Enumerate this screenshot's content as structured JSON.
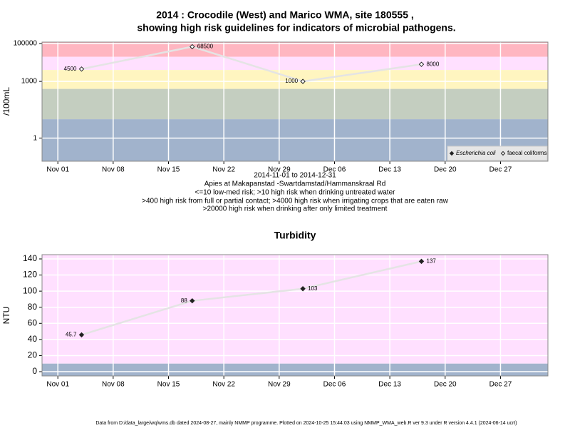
{
  "chart_data": [
    {
      "type": "line",
      "title": [
        "2014 : Crocodile (West) and Marico WMA, site 180555 ,",
        "showing high risk guidelines for indicators of microbial pathogens."
      ],
      "subtitle": [
        "2014-11-01 to 2014-12-31",
        "Apies at Makapanstad -Swartdamstad/Hammanskraal Rd",
        "<=10 low-med risk; >10 high risk when drinking untreated water",
        ">400 high risk from full or partial contact; >4000 high risk when irrigating crops that are eaten raw",
        ">20000 high risk when drinking after only limited treatment"
      ],
      "y_label": "/100mL",
      "log_y": true,
      "grid": true,
      "legend": "bottom-right",
      "x": [
        "2014-11-04",
        "2014-11-18",
        "2014-12-02",
        "2014-12-17"
      ],
      "series": [
        {
          "name": "Escherichia coli",
          "marker": "filled-diamond",
          "color": "#222222",
          "values": [
            null,
            null,
            null,
            null
          ]
        },
        {
          "name": "faecal coliforms",
          "marker": "open-diamond",
          "color": "#222222",
          "values": [
            4500,
            68500,
            1000,
            8000
          ]
        }
      ],
      "bands": [
        {
          "from": 20000,
          "to": 120000,
          "color": "#ffb6c1"
        },
        {
          "from": 4000,
          "to": 20000,
          "color": "#ffe0ff"
        },
        {
          "from": 400,
          "to": 4000,
          "color": "#fff5c0"
        },
        {
          "from": 10,
          "to": 400,
          "color": "#c4cec0"
        },
        {
          "from": 0.06,
          "to": 10,
          "color": "#a1b3cc"
        }
      ],
      "xlim": [
        "2014-10-30",
        "2015-01-02"
      ],
      "xticks": [
        {
          "value": "2014-11-01",
          "label": "Nov 01"
        },
        {
          "value": "2014-11-08",
          "label": "Nov 08"
        },
        {
          "value": "2014-11-15",
          "label": "Nov 15"
        },
        {
          "value": "2014-11-22",
          "label": "Nov 22"
        },
        {
          "value": "2014-11-29",
          "label": "Nov 29"
        },
        {
          "value": "2014-12-06",
          "label": "Dec 06"
        },
        {
          "value": "2014-12-13",
          "label": "Dec 13"
        },
        {
          "value": "2014-12-20",
          "label": "Dec 20"
        },
        {
          "value": "2014-12-27",
          "label": "Dec 27"
        }
      ],
      "ylim": [
        0.06,
        120000
      ],
      "yticks": [
        1,
        1000,
        100000
      ]
    },
    {
      "type": "line",
      "title": "Turbidity",
      "y_label": "NTU",
      "log_y": false,
      "grid": true,
      "x": [
        "2014-11-04",
        "2014-11-18",
        "2014-12-02",
        "2014-12-17"
      ],
      "series": [
        {
          "name": "Turbidity",
          "marker": "filled-diamond",
          "color": "#222222",
          "values": [
            45.7,
            88,
            103,
            137
          ]
        }
      ],
      "bands": [
        {
          "from": 10,
          "to": 145.3,
          "color": "#ffe0ff"
        },
        {
          "from": -5.3,
          "to": 10,
          "color": "#a1b3cc"
        }
      ],
      "xlim": [
        "2014-10-30",
        "2015-01-02"
      ],
      "xticks": [
        {
          "value": "2014-11-01",
          "label": "Nov 01"
        },
        {
          "value": "2014-11-08",
          "label": "Nov 08"
        },
        {
          "value": "2014-11-15",
          "label": "Nov 15"
        },
        {
          "value": "2014-11-22",
          "label": "Nov 22"
        },
        {
          "value": "2014-11-29",
          "label": "Nov 29"
        },
        {
          "value": "2014-12-06",
          "label": "Dec 06"
        },
        {
          "value": "2014-12-13",
          "label": "Dec 13"
        },
        {
          "value": "2014-12-20",
          "label": "Dec 20"
        },
        {
          "value": "2014-12-27",
          "label": "Dec 27"
        }
      ],
      "ylim": [
        -5.3,
        145.3
      ],
      "yticks": [
        0,
        20,
        40,
        60,
        80,
        100,
        120,
        140
      ]
    }
  ],
  "footer": "Data from D:/data_large/wq/wms.db dated 2024-08-27, mainly NMMP programme. Plotted on 2024-10-25 15:44:03 using NMMP_WMA_web.R ver 9.3 under R version 4.4.1 (2024-06-14 ucrt)"
}
